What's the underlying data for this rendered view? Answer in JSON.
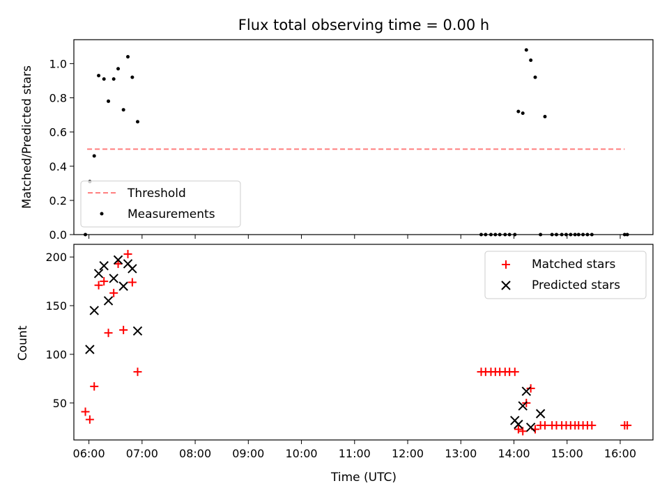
{
  "chart_data": [
    {
      "type": "scatter",
      "title": "Flux total observing time = 0.00 h",
      "xlabel": "",
      "ylabel": "Matched/Predicted stars",
      "xlim": [
        "05:43",
        "16:37"
      ],
      "ylim": [
        0,
        1.14
      ],
      "yticks": [
        0.0,
        0.2,
        0.4,
        0.6,
        0.8,
        1.0
      ],
      "ytick_labels": [
        "0.0",
        "0.2",
        "0.4",
        "0.6",
        "0.8",
        "1.0"
      ],
      "grid": false,
      "legend_position": "lower-left",
      "threshold": {
        "name": "Threshold",
        "value": 0.5,
        "x_range": [
          "05:58",
          "16:05"
        ],
        "color": "#ff7f7f"
      },
      "series": [
        {
          "name": "Measurements",
          "color": "#000000",
          "x": [
            "05:56",
            "06:01",
            "06:06",
            "06:11",
            "06:17",
            "06:22",
            "06:28",
            "06:33",
            "06:39",
            "06:44",
            "06:49",
            "06:55",
            "13:23",
            "13:28",
            "13:34",
            "13:39",
            "13:44",
            "13:50",
            "13:55",
            "14:01",
            "14:05",
            "14:10",
            "14:14",
            "14:19",
            "14:24",
            "14:30",
            "14:35",
            "14:43",
            "14:48",
            "14:54",
            "14:59",
            "15:04",
            "15:09",
            "15:13",
            "15:18",
            "15:23",
            "15:28",
            "16:05",
            "16:08"
          ],
          "y": [
            0.0,
            0.31,
            0.46,
            0.93,
            0.91,
            0.78,
            0.91,
            0.97,
            0.73,
            1.04,
            0.92,
            0.66,
            0.0,
            0.0,
            0.0,
            0.0,
            0.0,
            0.0,
            0.0,
            0.0,
            0.72,
            0.71,
            1.08,
            1.02,
            0.92,
            0.0,
            0.69,
            0.0,
            0.0,
            0.0,
            0.0,
            0.0,
            0.0,
            0.0,
            0.0,
            0.0,
            0.0,
            0.0,
            0.0
          ]
        }
      ]
    },
    {
      "type": "scatter",
      "title": "",
      "xlabel": "Time (UTC)",
      "ylabel": "Count",
      "xlim": [
        "05:43",
        "16:37"
      ],
      "ylim": [
        12,
        213
      ],
      "yticks": [
        50,
        100,
        150,
        200
      ],
      "ytick_labels": [
        "50",
        "100",
        "150",
        "200"
      ],
      "xtick_labels": [
        "06:00",
        "07:00",
        "08:00",
        "09:00",
        "10:00",
        "11:00",
        "12:00",
        "13:00",
        "14:00",
        "15:00",
        "16:00"
      ],
      "grid": false,
      "legend_position": "upper-right",
      "series": [
        {
          "name": "Matched stars",
          "marker": "plus",
          "color": "#ff0000",
          "x": [
            "05:56",
            "06:01",
            "06:06",
            "06:11",
            "06:17",
            "06:22",
            "06:28",
            "06:33",
            "06:39",
            "06:44",
            "06:49",
            "06:55",
            "13:23",
            "13:28",
            "13:34",
            "13:39",
            "13:44",
            "13:50",
            "13:55",
            "14:01",
            "14:05",
            "14:10",
            "14:14",
            "14:19",
            "14:24",
            "14:30",
            "14:35",
            "14:43",
            "14:48",
            "14:54",
            "14:59",
            "15:04",
            "15:09",
            "15:13",
            "15:18",
            "15:23",
            "15:28",
            "16:05",
            "16:08"
          ],
          "y": [
            41,
            33,
            67,
            171,
            175,
            122,
            163,
            193,
            125,
            203,
            174,
            82,
            82,
            82,
            82,
            82,
            82,
            82,
            82,
            82,
            23,
            21,
            50,
            65,
            23,
            27,
            27,
            27,
            27,
            27,
            27,
            27,
            27,
            27,
            27,
            27,
            27,
            27,
            27
          ]
        },
        {
          "name": "Predicted stars",
          "marker": "x",
          "color": "#000000",
          "x": [
            "06:01",
            "06:06",
            "06:11",
            "06:17",
            "06:22",
            "06:28",
            "06:33",
            "06:39",
            "06:44",
            "06:49",
            "06:55",
            "14:01",
            "14:05",
            "14:10",
            "14:14",
            "14:19",
            "14:30"
          ],
          "y": [
            105,
            145,
            183,
            191,
            155,
            178,
            197,
            170,
            193,
            188,
            124,
            32,
            28,
            47,
            62,
            25,
            39
          ]
        }
      ]
    }
  ]
}
